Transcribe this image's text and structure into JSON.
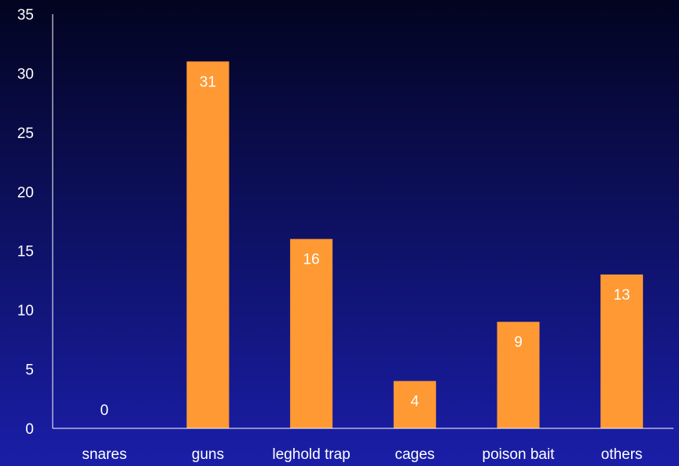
{
  "chart_data": {
    "type": "bar",
    "categories": [
      "snares",
      "guns",
      "leghold trap",
      "cages",
      "poison bait",
      "others"
    ],
    "values": [
      0,
      31,
      16,
      4,
      9,
      13
    ],
    "ylim": [
      0,
      35
    ],
    "yticks": [
      0,
      5,
      10,
      15,
      20,
      25,
      30,
      35
    ],
    "data_labels": true,
    "grid": false,
    "legend": "none",
    "colors": {
      "bar": "#ff9933",
      "axis": "#ffffff",
      "text": "#ffffff",
      "background_top": "#020420",
      "background_bottom": "#1a1ea8"
    }
  }
}
